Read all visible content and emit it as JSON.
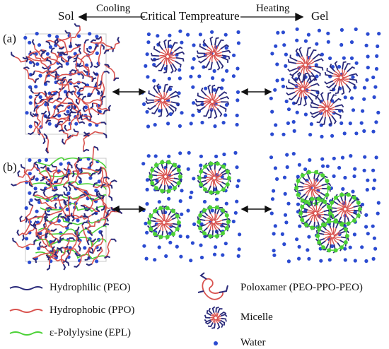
{
  "header": {
    "sol": "Sol",
    "cooling": "Cooling",
    "critical": "Critical Tempreature",
    "heating": "Heating",
    "gel": "Gel"
  },
  "panels": {
    "a_label": "(a)",
    "b_label": "(b)"
  },
  "legend": {
    "hydrophilic": "Hydrophilic (PEO)",
    "hydrophobic": "Hydrophobic (PPO)",
    "polylysine": "ε-Polylysine (EPL)",
    "poloxamer": "Poloxamer (PEO-PPO-PEO)",
    "micelle": "Micelle",
    "water": "Water"
  },
  "colors": {
    "peo": "#2a2a7a",
    "ppo": "#d9534f",
    "epl": "#4cd137",
    "water": "#2b4bd1",
    "text": "#111111"
  }
}
